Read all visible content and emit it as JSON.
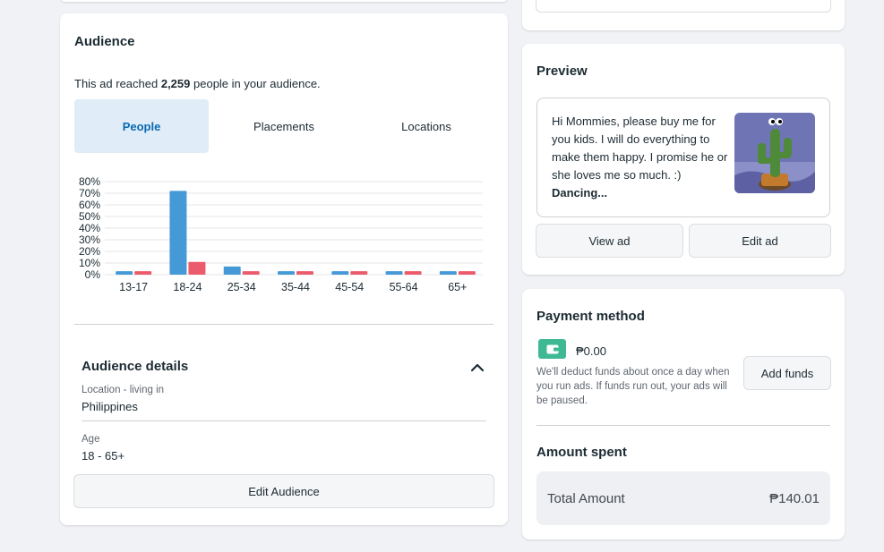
{
  "audience": {
    "title": "Audience",
    "reach_prefix": "This ad reached ",
    "reach_count": "2,259",
    "reach_suffix": " people in your audience.",
    "tabs": [
      {
        "label": "People",
        "active": true
      },
      {
        "label": "Placements",
        "active": false
      },
      {
        "label": "Locations",
        "active": false
      }
    ],
    "details_title": "Audience details",
    "location_label": "Location - living in",
    "location_value": "Philippines",
    "age_label": "Age",
    "age_value": "18 - 65+",
    "edit_button": "Edit Audience"
  },
  "chart_data": {
    "type": "bar",
    "categories": [
      "13-17",
      "18-24",
      "25-34",
      "35-44",
      "45-54",
      "55-64",
      "65+"
    ],
    "series": [
      {
        "color": "#4599d7",
        "values": [
          3,
          72,
          7,
          3,
          3,
          3,
          3
        ]
      },
      {
        "color": "#ec5b6b",
        "values": [
          3,
          11,
          3,
          3,
          3,
          3,
          3
        ]
      }
    ],
    "ylim": [
      0,
      80
    ],
    "yticks": [
      "0%",
      "10%",
      "20%",
      "30%",
      "40%",
      "50%",
      "60%",
      "70%",
      "80%"
    ],
    "grid": true
  },
  "preview": {
    "title": "Preview",
    "text": "Hi Mommies, please buy me for you kids. I will do everything to make them happy. I promise he or she loves me so much. :) ",
    "text_bold": "Dancing...",
    "view_button": "View ad",
    "edit_button": "Edit ad"
  },
  "payment": {
    "title": "Payment method",
    "wallet_icon": "wallet-icon",
    "balance": "₱0.00",
    "note": "We'll deduct funds about once a day when you run ads. If funds run out, your ads will be paused.",
    "add_funds": "Add funds"
  },
  "amount_spent": {
    "title": "Amount spent",
    "total_label": "Total Amount",
    "total_value": "₱140.01"
  }
}
